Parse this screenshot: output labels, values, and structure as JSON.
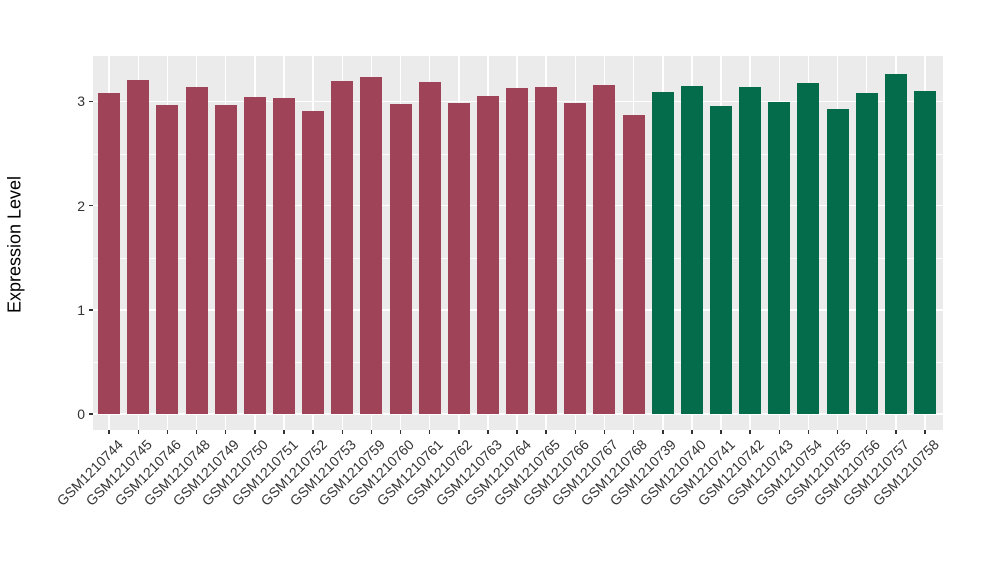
{
  "chart_data": {
    "type": "bar",
    "title": "",
    "xlabel": "",
    "ylabel": "Expression Level",
    "ylim": [
      0,
      3.44
    ],
    "yticks": [
      "0",
      "1",
      "2",
      "3"
    ],
    "ytick_values": [
      0,
      1,
      2,
      3
    ],
    "minor_ytick_values": [
      0.5,
      1.5,
      2.5
    ],
    "grid": "horizontal major+minor and vertical per-category white gridlines on gray panel",
    "legend_position": "none",
    "categories": [
      "GSM1210744",
      "GSM1210745",
      "GSM1210746",
      "GSM1210748",
      "GSM1210749",
      "GSM1210750",
      "GSM1210751",
      "GSM1210752",
      "GSM1210753",
      "GSM1210759",
      "GSM1210760",
      "GSM1210761",
      "GSM1210762",
      "GSM1210763",
      "GSM1210764",
      "GSM1210765",
      "GSM1210766",
      "GSM1210767",
      "GSM1210768",
      "GSM1210739",
      "GSM1210740",
      "GSM1210741",
      "GSM1210742",
      "GSM1210743",
      "GSM1210754",
      "GSM1210755",
      "GSM1210756",
      "GSM1210757",
      "GSM1210758"
    ],
    "values": [
      3.08,
      3.21,
      2.97,
      3.14,
      2.97,
      3.04,
      3.03,
      2.91,
      3.2,
      3.24,
      2.98,
      3.19,
      2.99,
      3.05,
      3.13,
      3.14,
      2.99,
      3.16,
      2.87,
      3.09,
      3.15,
      2.96,
      3.14,
      3.0,
      3.18,
      2.93,
      3.08,
      3.26,
      3.1
    ],
    "bar_groups": [
      "maroon",
      "maroon",
      "maroon",
      "maroon",
      "maroon",
      "maroon",
      "maroon",
      "maroon",
      "maroon",
      "maroon",
      "maroon",
      "maroon",
      "maroon",
      "maroon",
      "maroon",
      "maroon",
      "maroon",
      "maroon",
      "maroon",
      "green",
      "green",
      "green",
      "green",
      "green",
      "green",
      "green",
      "green",
      "green",
      "green"
    ],
    "colors": {
      "maroon": "#9F4458",
      "green": "#046B4B",
      "panel_bg": "#EBEBEB",
      "grid": "#FFFFFF",
      "axis_text": "#333333",
      "figure_bg": "#FFFFFF"
    }
  }
}
